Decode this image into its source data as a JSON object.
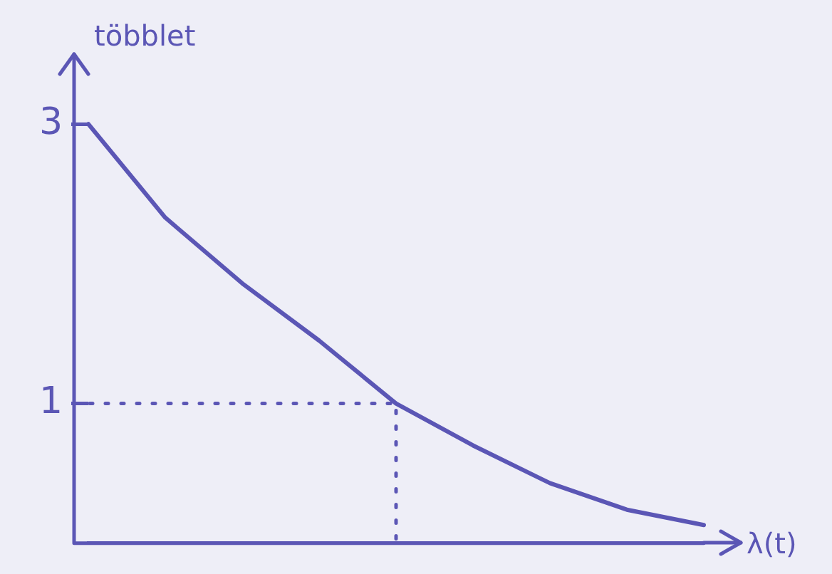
{
  "chart_data": {
    "type": "line",
    "ylabel": "többlet",
    "xlabel": "λ(t)",
    "categories": [
      null,
      null,
      null,
      null,
      null,
      null,
      null,
      null,
      null
    ],
    "series": [
      {
        "color": "#5b56b5",
        "values": [
          3,
          2.33,
          1.86,
          1.45,
          1,
          0.7,
          0.43,
          0.24,
          0.13
        ]
      }
    ],
    "ylim": [
      0,
      3.5
    ],
    "yticks": [
      1,
      3
    ],
    "tick_labels": "y",
    "grid": false,
    "legend": false,
    "marker": "none",
    "line_style": "solid",
    "ref_lines": [
      {
        "axis": "y",
        "value": 1,
        "line_style": "dotted",
        "color": "#5b56b5"
      }
    ]
  }
}
